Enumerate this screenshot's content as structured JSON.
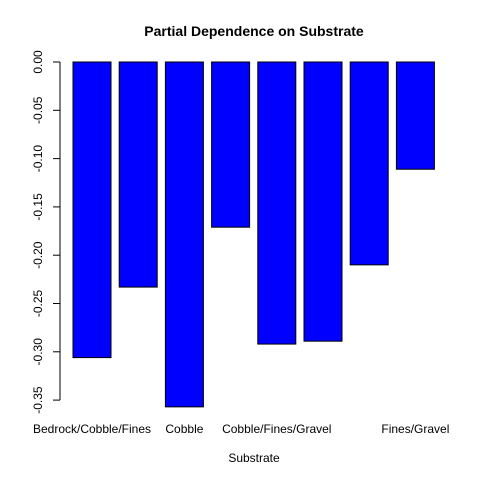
{
  "chart_data": {
    "type": "bar",
    "title": "Partial Dependence on Substrate",
    "xlabel": "Substrate",
    "ylabel": "",
    "ylim": [
      -0.36,
      0.0
    ],
    "yticks": [
      0.0,
      -0.05,
      -0.1,
      -0.15,
      -0.2,
      -0.25,
      -0.3,
      -0.35
    ],
    "ytick_labels": [
      "0.00",
      "-0.05",
      "-0.10",
      "-0.15",
      "-0.20",
      "-0.25",
      "-0.30",
      "-0.35"
    ],
    "categories": [
      "Bedrock/Cobble/Fines",
      "",
      "Cobble",
      "",
      "Cobble/Fines/Gravel",
      "",
      "",
      "Fines/Gravel"
    ],
    "values": [
      -0.306,
      -0.233,
      -0.357,
      -0.171,
      -0.292,
      -0.289,
      -0.21,
      -0.111
    ],
    "bar_color": "#0000ff",
    "bar_edge_color": "#000000"
  }
}
